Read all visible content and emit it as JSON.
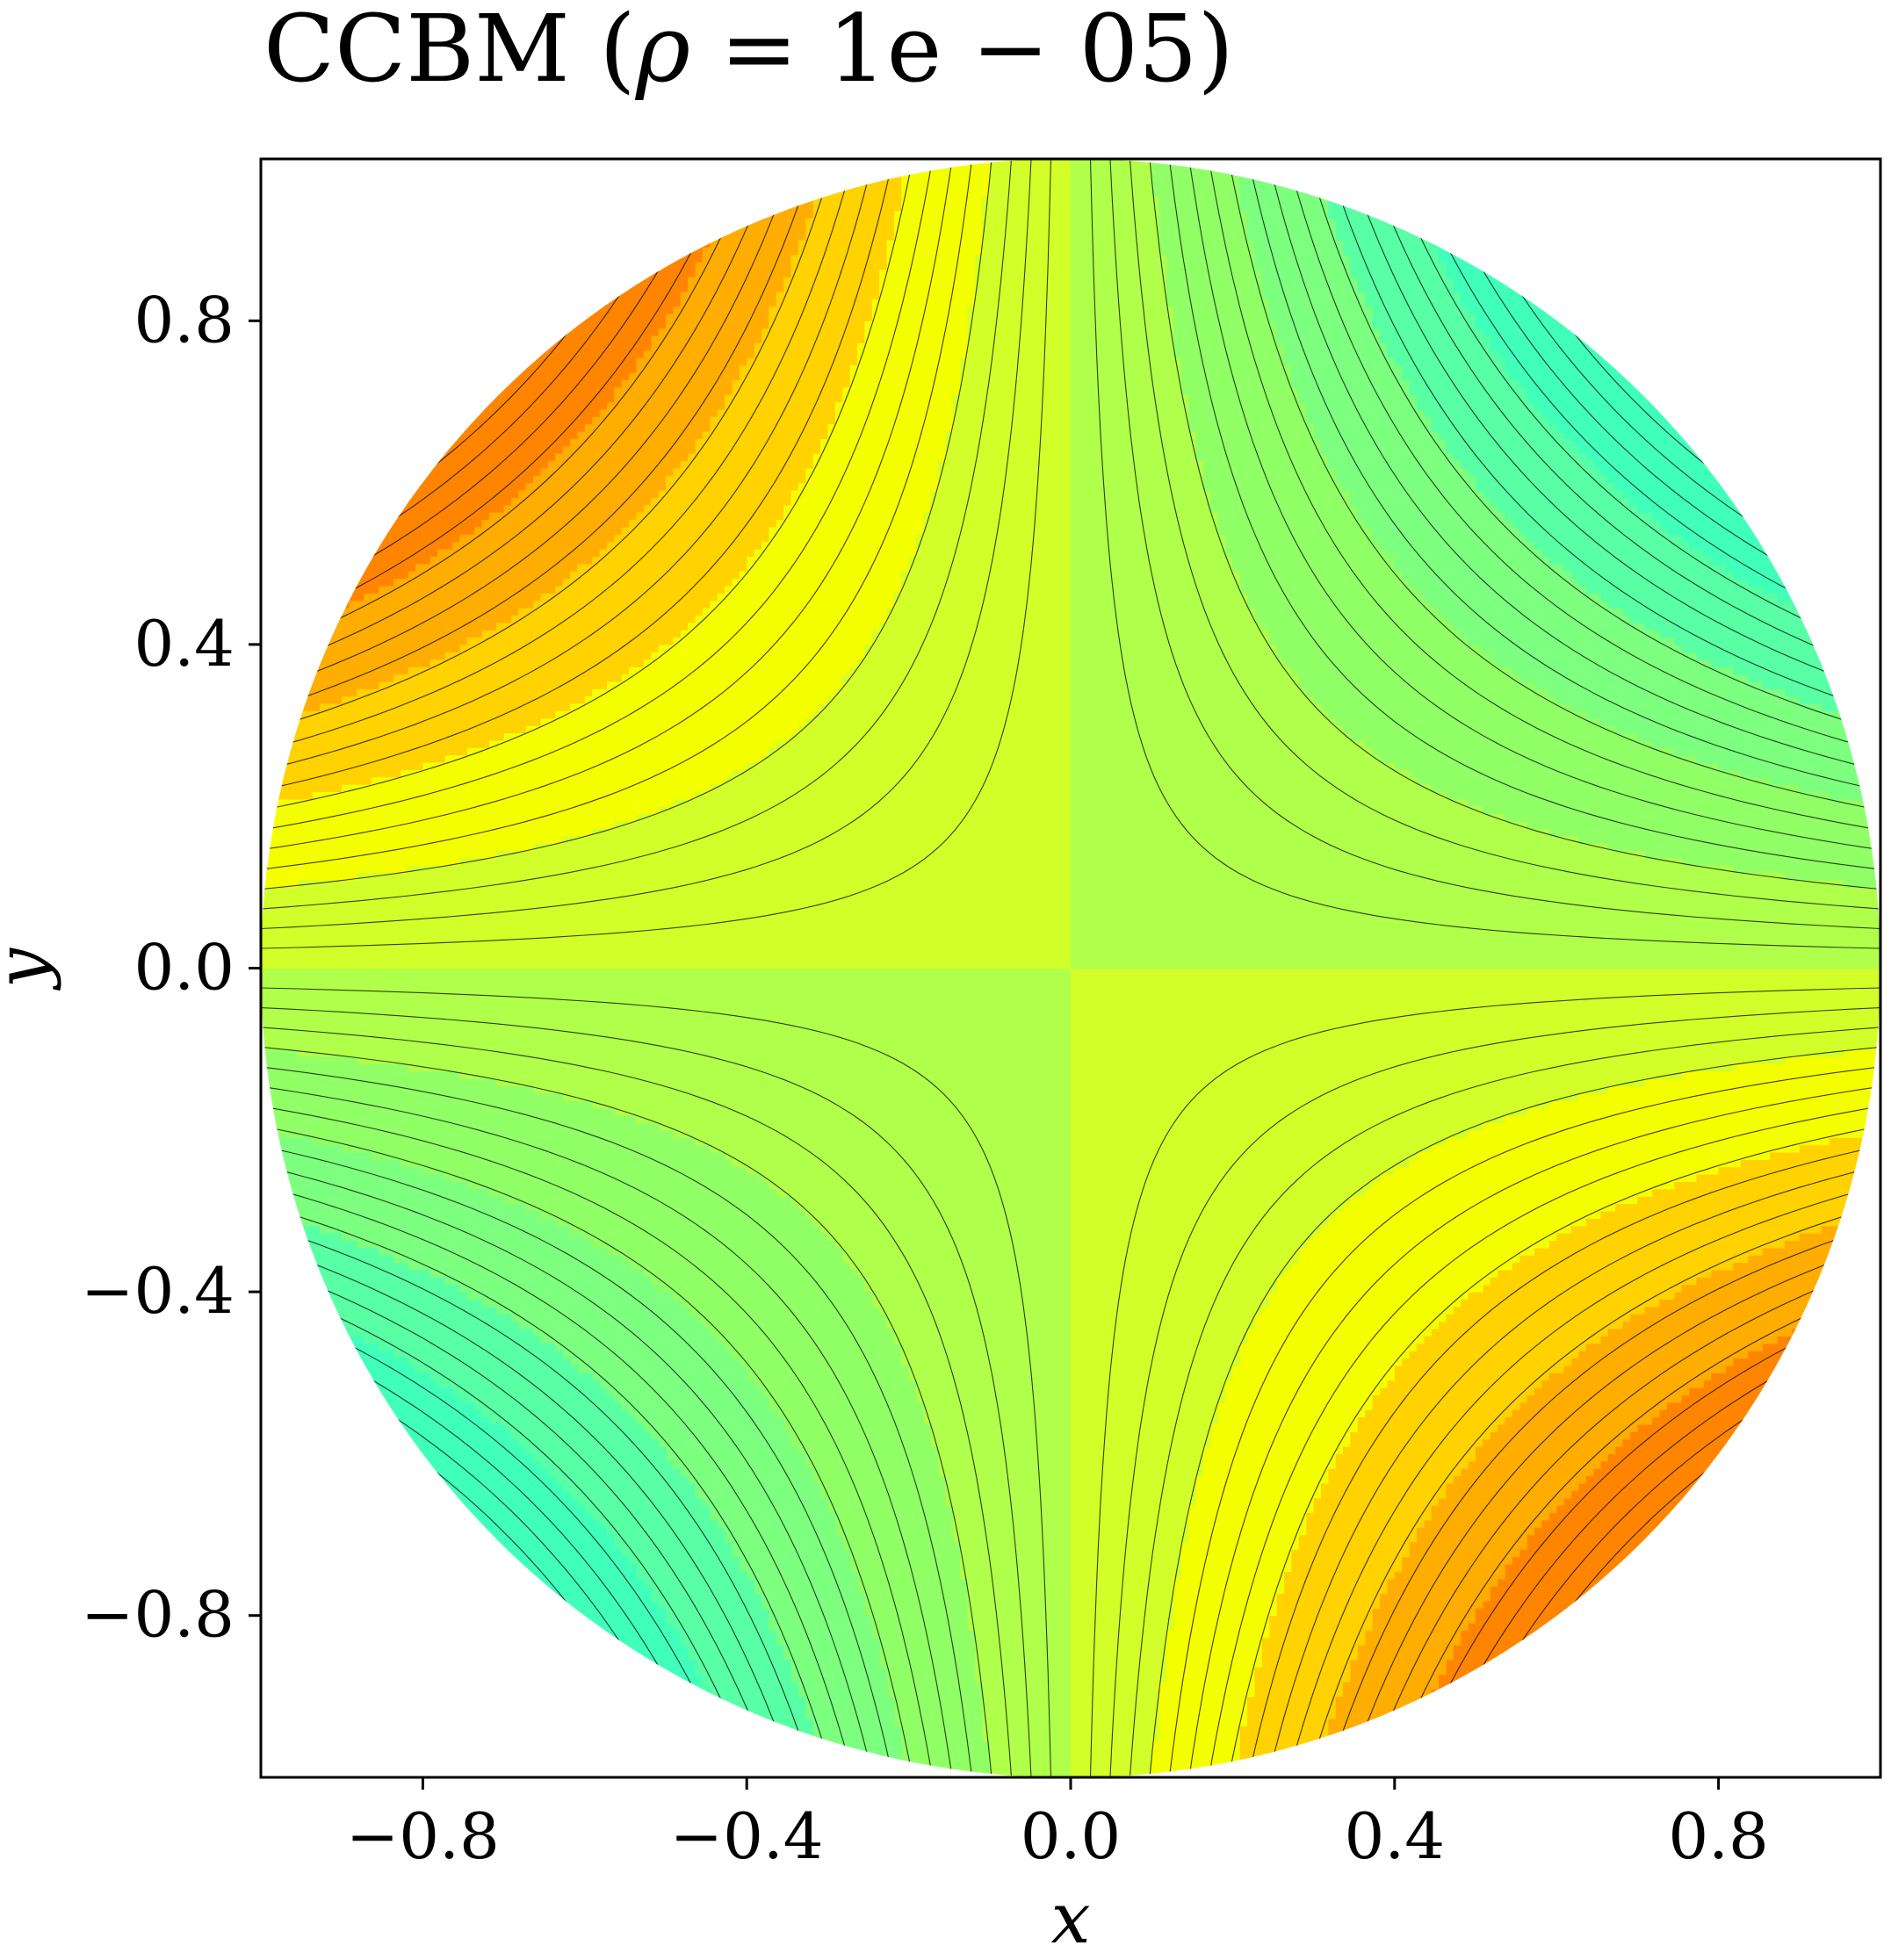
{
  "chart_data": {
    "type": "contour",
    "title_prefix": "CCBM (",
    "title_symbol": "ρ",
    "title_eq": " = 1e − 05)",
    "xlabel": "x",
    "ylabel": "y",
    "xlim": [
      -1.0,
      1.0
    ],
    "ylim": [
      -1.0,
      1.0
    ],
    "xticks": [
      -0.8,
      -0.4,
      0.0,
      0.4,
      0.8
    ],
    "yticks": [
      -0.8,
      -0.4,
      0.0,
      0.4,
      0.8
    ],
    "xtick_labels": [
      "−0.8",
      "−0.4",
      "0.0",
      "0.4",
      "0.8"
    ],
    "ytick_labels": [
      "−0.8",
      "−0.4",
      "0.0",
      "0.4",
      "0.8"
    ],
    "domain": "unit disk",
    "field": "-x*y (saddle): maxima at upper-left and lower-right, minima at upper-right and lower-left",
    "fill_levels": 9,
    "line_levels": 41,
    "colormap": [
      "#40ffbb",
      "#58ffa4",
      "#7dff7f",
      "#91ff66",
      "#b0ff4a",
      "#d2ff29",
      "#f4ff00",
      "#ffd200",
      "#ffad00",
      "#ff8500"
    ],
    "line_color": "#000000",
    "grid": false,
    "legend": "none"
  }
}
